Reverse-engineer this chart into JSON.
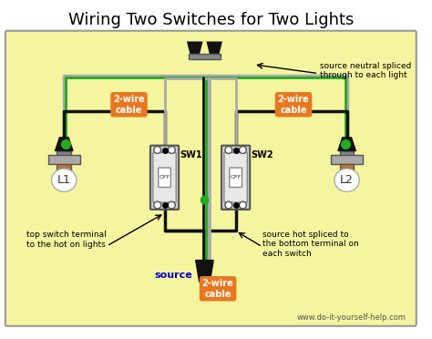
{
  "title": "Wiring Two Switches for Two Lights",
  "bg_color": "#f5f5a0",
  "border_color": "#888888",
  "title_color": "#000000",
  "title_fontsize": 13,
  "website": "www.do-it-yourself-help.com",
  "website_color": "#555555",
  "label_L1": "L1",
  "label_L2": "L2",
  "label_SW1": "SW1",
  "label_SW2": "SW2",
  "label_source": "source",
  "label_source_color": "#0000cc",
  "orange_label_color": "#ffffff",
  "orange_bg": "#e87820",
  "cable_labels": [
    "2-wire\ncable",
    "2-wire\ncable",
    "2-wire\ncable"
  ],
  "annotation1": "source neutral spliced\nthrough to each light",
  "annotation2": "top switch terminal\nto the hot on lights",
  "annotation3": "source hot spliced to\nthe bottom terminal on\neach switch",
  "wire_black": "#111111",
  "wire_white": "#aaaaaa",
  "wire_green": "#22aa22",
  "wire_hot": "#111111"
}
